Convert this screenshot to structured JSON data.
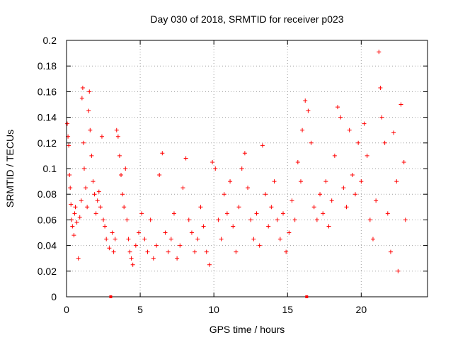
{
  "chart_data": {
    "type": "scatter",
    "title": "Day 030 of 2018, SRMTID for receiver p023",
    "xlabel": "GPS time / hours",
    "ylabel": "SRMTID / TECUs",
    "xlim": [
      0,
      24.5
    ],
    "ylim": [
      0,
      0.2
    ],
    "xticks": [
      0,
      5,
      10,
      15,
      20
    ],
    "xtick_labels": [
      "0",
      "5",
      "10",
      "15",
      "20"
    ],
    "yticks": [
      0,
      0.02,
      0.04,
      0.06,
      0.08,
      0.1,
      0.12,
      0.14,
      0.16,
      0.18,
      0.2
    ],
    "ytick_labels": [
      "0",
      "0.02",
      "0.04",
      "0.06",
      "0.08",
      "0.1",
      "0.12",
      "0.14",
      "0.16",
      "0.18",
      "0.2"
    ],
    "grid": true,
    "marker": "plus",
    "color": "#ff0000",
    "axis_markers": [
      {
        "x": 3.0,
        "y": 0
      },
      {
        "x": 16.3,
        "y": 0
      }
    ],
    "series": [
      {
        "name": "SRMTID",
        "points": [
          [
            0.05,
            0.135
          ],
          [
            0.1,
            0.125
          ],
          [
            0.15,
            0.118
          ],
          [
            0.2,
            0.095
          ],
          [
            0.25,
            0.085
          ],
          [
            0.3,
            0.072
          ],
          [
            0.35,
            0.06
          ],
          [
            0.4,
            0.055
          ],
          [
            0.5,
            0.048
          ],
          [
            0.55,
            0.065
          ],
          [
            0.6,
            0.07
          ],
          [
            0.7,
            0.058
          ],
          [
            0.8,
            0.03
          ],
          [
            0.9,
            0.062
          ],
          [
            1.0,
            0.075
          ],
          [
            1.05,
            0.155
          ],
          [
            1.1,
            0.163
          ],
          [
            1.15,
            0.12
          ],
          [
            1.2,
            0.1
          ],
          [
            1.3,
            0.085
          ],
          [
            1.4,
            0.07
          ],
          [
            1.5,
            0.145
          ],
          [
            1.55,
            0.16
          ],
          [
            1.6,
            0.13
          ],
          [
            1.7,
            0.11
          ],
          [
            1.8,
            0.09
          ],
          [
            1.9,
            0.08
          ],
          [
            2.0,
            0.065
          ],
          [
            2.1,
            0.075
          ],
          [
            2.2,
            0.082
          ],
          [
            2.3,
            0.07
          ],
          [
            2.4,
            0.125
          ],
          [
            2.5,
            0.06
          ],
          [
            2.6,
            0.055
          ],
          [
            2.7,
            0.045
          ],
          [
            2.9,
            0.038
          ],
          [
            3.1,
            0.05
          ],
          [
            3.2,
            0.035
          ],
          [
            3.3,
            0.045
          ],
          [
            3.4,
            0.13
          ],
          [
            3.5,
            0.125
          ],
          [
            3.6,
            0.11
          ],
          [
            3.7,
            0.095
          ],
          [
            3.8,
            0.08
          ],
          [
            3.9,
            0.07
          ],
          [
            4.0,
            0.1
          ],
          [
            4.1,
            0.06
          ],
          [
            4.2,
            0.045
          ],
          [
            4.3,
            0.035
          ],
          [
            4.4,
            0.03
          ],
          [
            4.5,
            0.025
          ],
          [
            4.7,
            0.04
          ],
          [
            4.9,
            0.05
          ],
          [
            5.1,
            0.065
          ],
          [
            5.3,
            0.045
          ],
          [
            5.5,
            0.035
          ],
          [
            5.7,
            0.06
          ],
          [
            5.9,
            0.03
          ],
          [
            6.1,
            0.04
          ],
          [
            6.3,
            0.095
          ],
          [
            6.5,
            0.112
          ],
          [
            6.7,
            0.05
          ],
          [
            6.9,
            0.035
          ],
          [
            7.1,
            0.045
          ],
          [
            7.3,
            0.065
          ],
          [
            7.5,
            0.03
          ],
          [
            7.7,
            0.04
          ],
          [
            7.9,
            0.085
          ],
          [
            8.1,
            0.108
          ],
          [
            8.3,
            0.06
          ],
          [
            8.5,
            0.05
          ],
          [
            8.7,
            0.035
          ],
          [
            8.9,
            0.045
          ],
          [
            9.1,
            0.07
          ],
          [
            9.3,
            0.055
          ],
          [
            9.5,
            0.035
          ],
          [
            9.7,
            0.025
          ],
          [
            9.9,
            0.105
          ],
          [
            10.1,
            0.1
          ],
          [
            10.3,
            0.06
          ],
          [
            10.5,
            0.045
          ],
          [
            10.7,
            0.08
          ],
          [
            10.9,
            0.065
          ],
          [
            11.1,
            0.09
          ],
          [
            11.3,
            0.055
          ],
          [
            11.5,
            0.035
          ],
          [
            11.7,
            0.07
          ],
          [
            11.9,
            0.1
          ],
          [
            12.1,
            0.112
          ],
          [
            12.3,
            0.085
          ],
          [
            12.5,
            0.06
          ],
          [
            12.7,
            0.045
          ],
          [
            12.9,
            0.065
          ],
          [
            13.1,
            0.04
          ],
          [
            13.3,
            0.118
          ],
          [
            13.5,
            0.08
          ],
          [
            13.7,
            0.055
          ],
          [
            13.9,
            0.07
          ],
          [
            14.1,
            0.09
          ],
          [
            14.3,
            0.06
          ],
          [
            14.5,
            0.045
          ],
          [
            14.7,
            0.065
          ],
          [
            14.9,
            0.035
          ],
          [
            15.1,
            0.05
          ],
          [
            15.3,
            0.075
          ],
          [
            15.5,
            0.06
          ],
          [
            15.7,
            0.105
          ],
          [
            15.9,
            0.09
          ],
          [
            16.0,
            0.13
          ],
          [
            16.2,
            0.153
          ],
          [
            16.4,
            0.145
          ],
          [
            16.6,
            0.12
          ],
          [
            16.8,
            0.07
          ],
          [
            17.0,
            0.06
          ],
          [
            17.2,
            0.08
          ],
          [
            17.4,
            0.065
          ],
          [
            17.6,
            0.09
          ],
          [
            17.8,
            0.055
          ],
          [
            18.0,
            0.075
          ],
          [
            18.2,
            0.11
          ],
          [
            18.4,
            0.148
          ],
          [
            18.6,
            0.14
          ],
          [
            18.8,
            0.085
          ],
          [
            19.0,
            0.07
          ],
          [
            19.2,
            0.13
          ],
          [
            19.4,
            0.095
          ],
          [
            19.6,
            0.08
          ],
          [
            19.8,
            0.12
          ],
          [
            20.0,
            0.09
          ],
          [
            20.2,
            0.135
          ],
          [
            20.4,
            0.11
          ],
          [
            20.6,
            0.06
          ],
          [
            20.8,
            0.045
          ],
          [
            21.0,
            0.075
          ],
          [
            21.2,
            0.191
          ],
          [
            21.3,
            0.163
          ],
          [
            21.4,
            0.14
          ],
          [
            21.6,
            0.12
          ],
          [
            21.8,
            0.065
          ],
          [
            22.0,
            0.035
          ],
          [
            22.2,
            0.128
          ],
          [
            22.4,
            0.09
          ],
          [
            22.5,
            0.02
          ],
          [
            22.7,
            0.15
          ],
          [
            22.9,
            0.105
          ],
          [
            23.0,
            0.06
          ]
        ]
      }
    ]
  }
}
